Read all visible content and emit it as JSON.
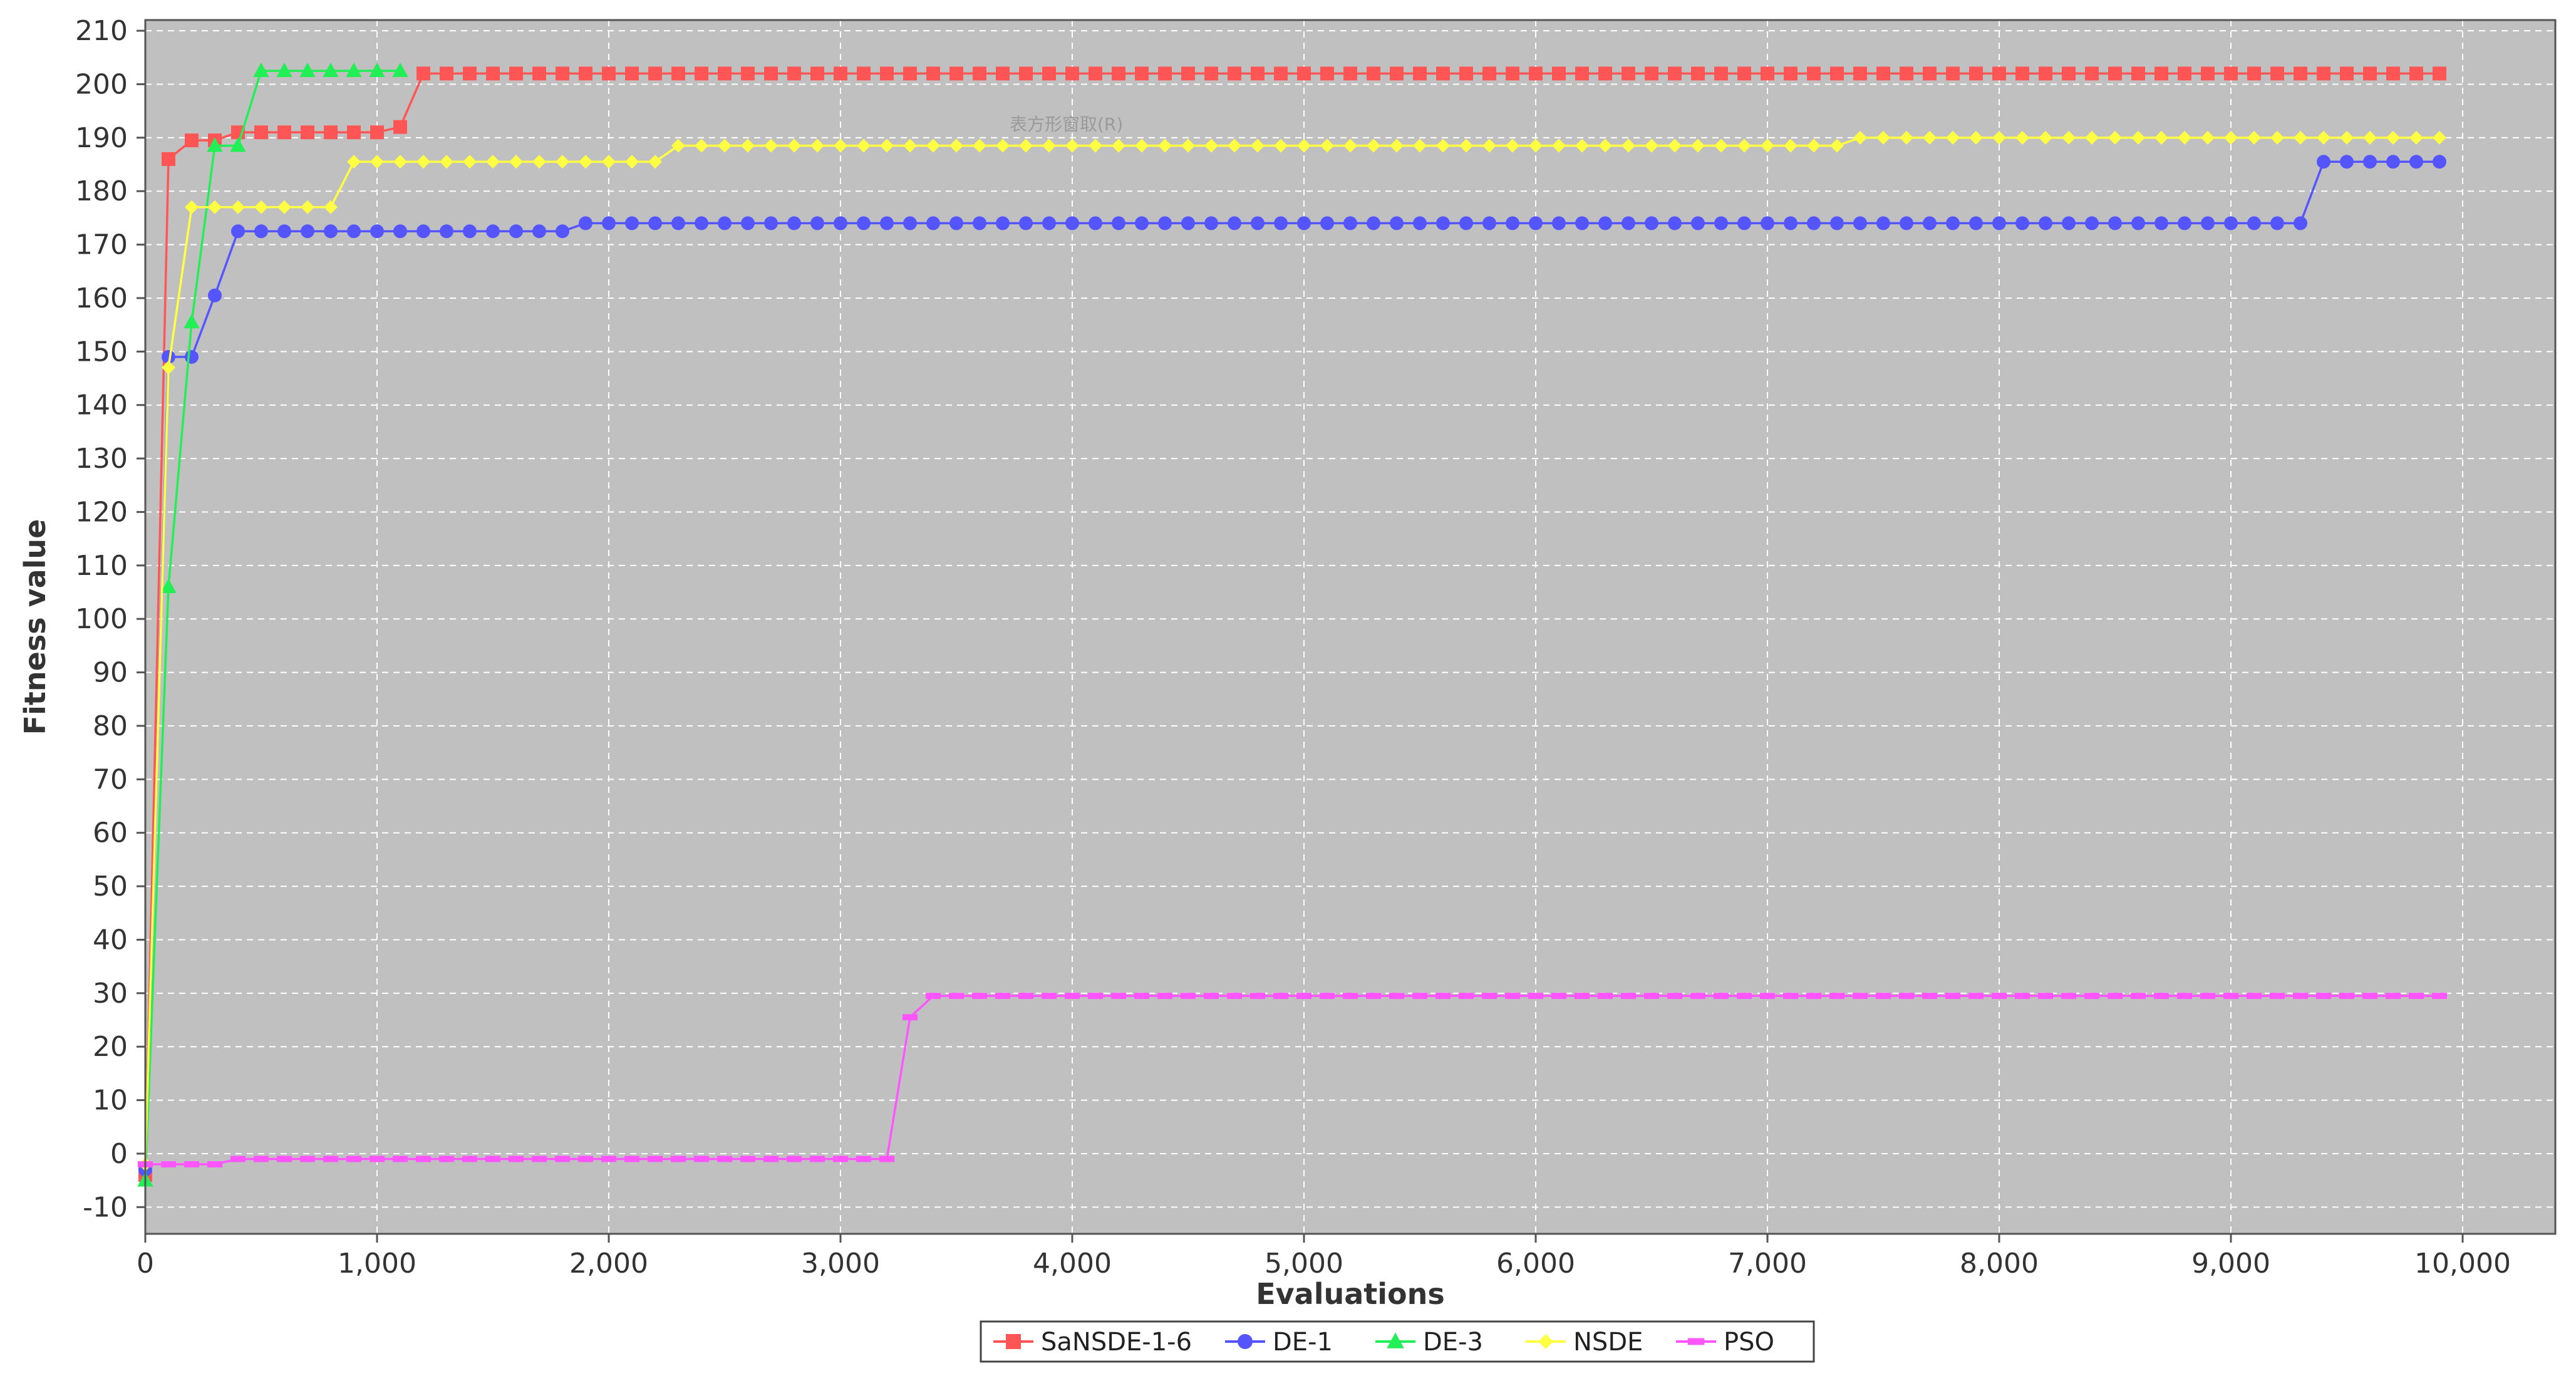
{
  "chart_data": {
    "type": "line",
    "title": "",
    "xlabel": "Evaluations",
    "ylabel": "Fitness value",
    "xlim": [
      0,
      10400
    ],
    "ylim": [
      -15,
      212
    ],
    "xticks": [
      0,
      1000,
      2000,
      3000,
      4000,
      5000,
      6000,
      7000,
      8000,
      9000,
      10000
    ],
    "xtick_labels": [
      "0",
      "1,000",
      "2,000",
      "3,000",
      "4,000",
      "5,000",
      "6,000",
      "7,000",
      "8,000",
      "9,000",
      "10,000"
    ],
    "yticks": [
      -10,
      0,
      10,
      20,
      30,
      40,
      50,
      60,
      70,
      80,
      90,
      100,
      110,
      120,
      130,
      140,
      150,
      160,
      170,
      180,
      190,
      200,
      210
    ],
    "grid": true,
    "plot_background": "#c0c0c0",
    "gridline_color": "#ffffff",
    "legend_position": "bottom-center",
    "ghost_menu_label": "表方形窗取(R)",
    "series": [
      {
        "name": "SaNSDE-1-6",
        "color": "#ff5555",
        "marker": "square",
        "x_step": 100,
        "values_by_step": [
          [
            0,
            -4
          ],
          [
            100,
            186
          ],
          [
            200,
            189.5
          ],
          [
            400,
            191
          ],
          [
            1100,
            192
          ],
          [
            1200,
            202
          ]
        ],
        "x_end": 9900
      },
      {
        "name": "DE-1",
        "color": "#5555ff",
        "marker": "circle",
        "x_step": 100,
        "values_by_step": [
          [
            0,
            -3
          ],
          [
            100,
            149
          ],
          [
            300,
            160.5
          ],
          [
            400,
            172.5
          ],
          [
            1900,
            174
          ],
          [
            9400,
            185.5
          ]
        ],
        "x_end": 9900
      },
      {
        "name": "DE-3",
        "color": "#22ee55",
        "marker": "triangle",
        "x_step": 100,
        "values_by_step": [
          [
            0,
            -5
          ],
          [
            100,
            106
          ],
          [
            200,
            155.5
          ],
          [
            300,
            188.5
          ],
          [
            500,
            202.5
          ]
        ],
        "x_end": 1100
      },
      {
        "name": "NSDE",
        "color": "#ffff44",
        "marker": "diamond",
        "x_step": 100,
        "values_by_step": [
          [
            0,
            -2
          ],
          [
            100,
            147
          ],
          [
            200,
            177
          ],
          [
            900,
            185.5
          ],
          [
            2300,
            188.5
          ],
          [
            7400,
            190
          ]
        ],
        "x_end": 9900
      },
      {
        "name": "PSO",
        "color": "#ff55ff",
        "marker": "dash",
        "x_step": 100,
        "values_by_step": [
          [
            0,
            -2
          ],
          [
            400,
            -1
          ],
          [
            3300,
            25.5
          ],
          [
            3400,
            29.5
          ]
        ],
        "x_end": 9900
      }
    ]
  }
}
